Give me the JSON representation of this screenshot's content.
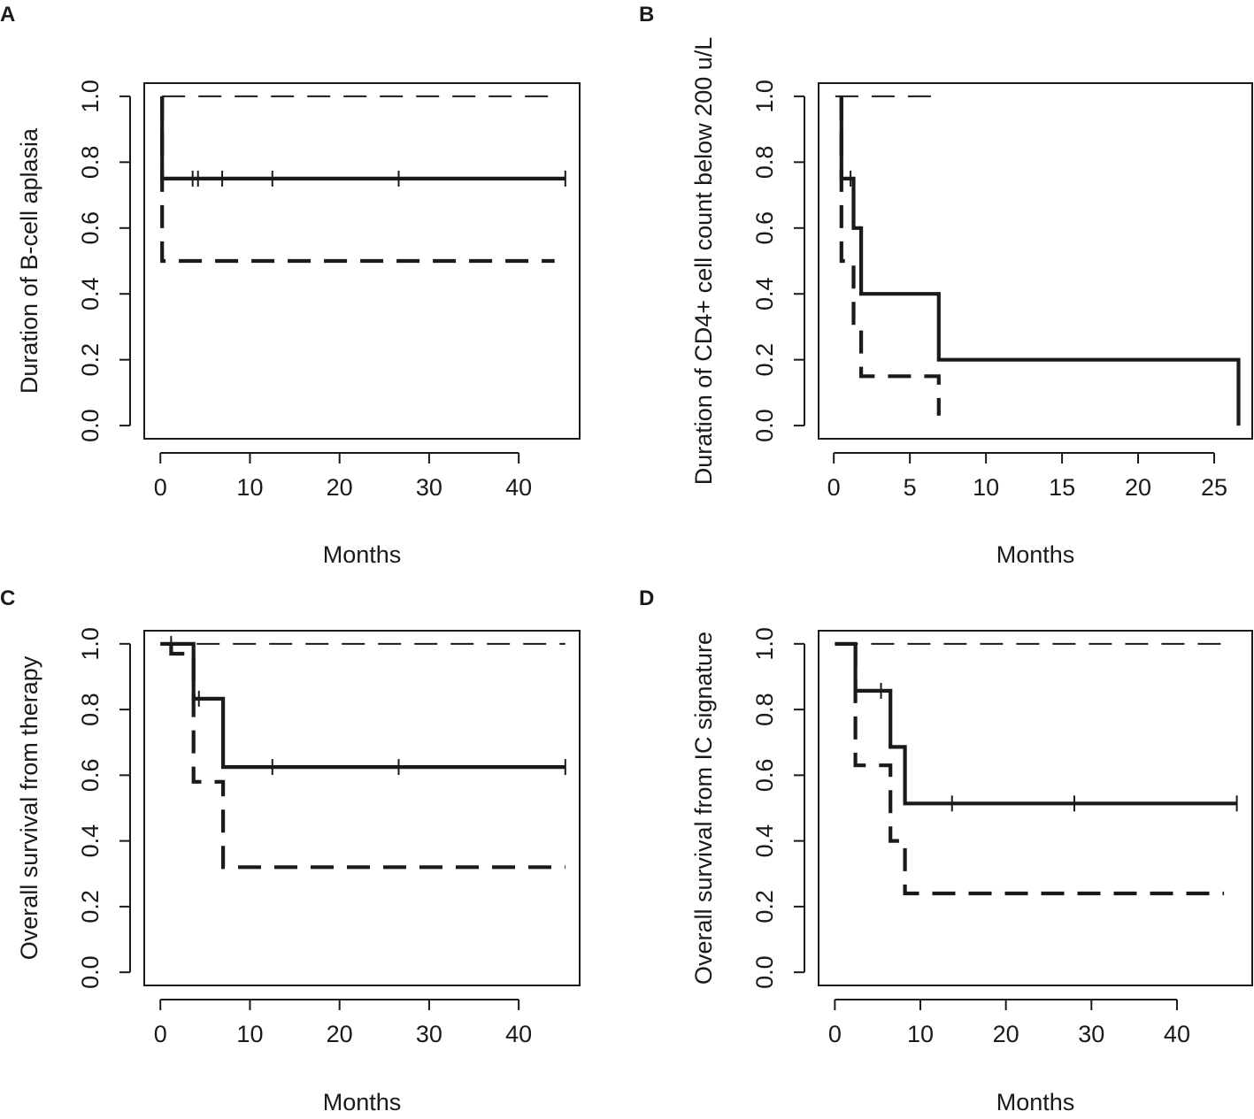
{
  "chart_data": [
    {
      "type": "line",
      "panel_label": "A",
      "title": "",
      "xlabel": "Months",
      "ylabel": "Duration of B-cell aplasia",
      "xlim": [
        -1.8,
        46.8
      ],
      "ylim": [
        -0.04,
        1.04
      ],
      "xticks": [
        0,
        10,
        20,
        30,
        40
      ],
      "xtick_labels": [
        "0",
        "10",
        "20",
        "30",
        "40"
      ],
      "yticks": [
        0.0,
        0.2,
        0.4,
        0.6,
        0.8,
        1.0
      ],
      "ytick_labels": [
        "0.0",
        "0.2",
        "0.4",
        "0.6",
        "0.8",
        "1.0"
      ],
      "grid": false,
      "series": [
        {
          "name": "estimate",
          "style": "solid-thick",
          "steps": [
            [
              0.2,
              1.0
            ],
            [
              0.2,
              0.75
            ],
            [
              45.2,
              0.75
            ]
          ],
          "censor_times": [
            3.6,
            4.2,
            6.9,
            12.5,
            26.6,
            45.2
          ]
        },
        {
          "name": "upper bound",
          "style": "dashed-thin",
          "steps": [
            [
              0.2,
              1.0
            ],
            [
              44.0,
              1.0
            ]
          ],
          "censor_times": []
        },
        {
          "name": "lower bound",
          "style": "dashed-thick",
          "steps": [
            [
              0.2,
              1.0
            ],
            [
              0.2,
              0.5
            ],
            [
              44.0,
              0.5
            ]
          ],
          "censor_times": []
        }
      ]
    },
    {
      "type": "line",
      "panel_label": "B",
      "title": "",
      "xlabel": "Months",
      "ylabel": "Duration of CD4+ cell count below 200 u/L",
      "xlim": [
        -1.0,
        27.5
      ],
      "ylim": [
        -0.04,
        1.04
      ],
      "xticks": [
        0,
        5,
        10,
        15,
        20,
        25
      ],
      "xtick_labels": [
        "0",
        "5",
        "10",
        "15",
        "20",
        "25"
      ],
      "yticks": [
        0.0,
        0.2,
        0.4,
        0.6,
        0.8,
        1.0
      ],
      "ytick_labels": [
        "0.0",
        "0.2",
        "0.4",
        "0.6",
        "0.8",
        "1.0"
      ],
      "grid": false,
      "series": [
        {
          "name": "estimate",
          "style": "solid-thick",
          "steps": [
            [
              0.5,
              1.0
            ],
            [
              0.5,
              0.75
            ],
            [
              1.3,
              0.75
            ],
            [
              1.3,
              0.6
            ],
            [
              1.8,
              0.6
            ],
            [
              1.8,
              0.4
            ],
            [
              6.9,
              0.4
            ],
            [
              6.9,
              0.2
            ],
            [
              26.6,
              0.2
            ],
            [
              26.6,
              0.0
            ]
          ],
          "censor_times": [
            1.1
          ]
        },
        {
          "name": "upper bound",
          "style": "dashed-thin",
          "steps": [
            [
              0.1,
              1.0
            ],
            [
              6.9,
              1.0
            ]
          ],
          "censor_times": []
        },
        {
          "name": "lower bound",
          "style": "dashed-thick",
          "steps": [
            [
              0.5,
              1.0
            ],
            [
              0.5,
              0.5
            ],
            [
              1.3,
              0.5
            ],
            [
              1.3,
              0.3
            ],
            [
              1.8,
              0.3
            ],
            [
              1.8,
              0.15
            ],
            [
              6.9,
              0.15
            ],
            [
              6.9,
              0.03
            ]
          ],
          "censor_times": []
        }
      ]
    },
    {
      "type": "line",
      "panel_label": "C",
      "title": "",
      "xlabel": "Months",
      "ylabel": "Overall survival from therapy",
      "xlim": [
        -1.8,
        46.8
      ],
      "ylim": [
        -0.04,
        1.04
      ],
      "xticks": [
        0,
        10,
        20,
        30,
        40
      ],
      "xtick_labels": [
        "0",
        "10",
        "20",
        "30",
        "40"
      ],
      "yticks": [
        0.0,
        0.2,
        0.4,
        0.6,
        0.8,
        1.0
      ],
      "ytick_labels": [
        "0.0",
        "0.2",
        "0.4",
        "0.6",
        "0.8",
        "1.0"
      ],
      "grid": false,
      "series": [
        {
          "name": "estimate",
          "style": "solid-thick",
          "steps": [
            [
              0.0,
              1.0
            ],
            [
              3.7,
              1.0
            ],
            [
              3.7,
              0.833
            ],
            [
              7.0,
              0.833
            ],
            [
              7.0,
              0.625
            ],
            [
              45.2,
              0.625
            ]
          ],
          "censor_times": [
            1.2,
            4.3,
            12.5,
            26.6,
            45.2
          ]
        },
        {
          "name": "upper bound",
          "style": "dashed-thin",
          "steps": [
            [
              0.0,
              1.0
            ],
            [
              45.2,
              1.0
            ]
          ],
          "censor_times": []
        },
        {
          "name": "lower bound",
          "style": "dashed-thick",
          "steps": [
            [
              1.2,
              1.0
            ],
            [
              1.2,
              0.97
            ],
            [
              3.7,
              0.97
            ],
            [
              3.7,
              0.58
            ],
            [
              7.0,
              0.58
            ],
            [
              7.0,
              0.32
            ],
            [
              45.2,
              0.32
            ]
          ],
          "censor_times": []
        }
      ]
    },
    {
      "type": "line",
      "panel_label": "D",
      "title": "",
      "xlabel": "Months",
      "ylabel": "Overall survival from IC signature",
      "xlim": [
        -1.9,
        48.8
      ],
      "ylim": [
        -0.04,
        1.04
      ],
      "xticks": [
        0,
        10,
        20,
        30,
        40
      ],
      "xtick_labels": [
        "0",
        "10",
        "20",
        "30",
        "40"
      ],
      "yticks": [
        0.0,
        0.2,
        0.4,
        0.6,
        0.8,
        1.0
      ],
      "ytick_labels": [
        "0.0",
        "0.2",
        "0.4",
        "0.6",
        "0.8",
        "1.0"
      ],
      "grid": false,
      "series": [
        {
          "name": "estimate",
          "style": "solid-thick",
          "steps": [
            [
              0.0,
              1.0
            ],
            [
              2.4,
              1.0
            ],
            [
              2.4,
              0.857
            ],
            [
              6.5,
              0.857
            ],
            [
              6.5,
              0.686
            ],
            [
              8.2,
              0.686
            ],
            [
              8.2,
              0.514
            ],
            [
              47.0,
              0.514
            ]
          ],
          "censor_times": [
            5.4,
            13.7,
            28.0,
            47.0
          ]
        },
        {
          "name": "upper bound",
          "style": "dashed-thin",
          "steps": [
            [
              0.0,
              1.0
            ],
            [
              46.5,
              1.0
            ]
          ],
          "censor_times": []
        },
        {
          "name": "lower bound",
          "style": "dashed-thick",
          "steps": [
            [
              2.4,
              1.0
            ],
            [
              2.4,
              0.63
            ],
            [
              6.5,
              0.63
            ],
            [
              6.5,
              0.4
            ],
            [
              8.2,
              0.4
            ],
            [
              8.2,
              0.24
            ],
            [
              45.5,
              0.24
            ]
          ],
          "censor_times": []
        }
      ]
    }
  ]
}
